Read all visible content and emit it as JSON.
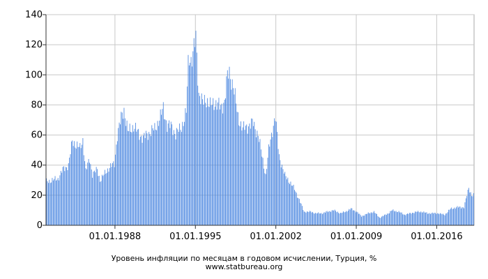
{
  "chart_data": {
    "type": "bar",
    "title": "Уровень инфляции по месяцам в годовом исчислении, Турция, %",
    "source": "www.statbureau.org",
    "xlabel": "",
    "ylabel": "",
    "x_start": "1982-01",
    "x_end": "2019-03",
    "ylim": [
      0,
      140
    ],
    "yticks": [
      0,
      20,
      40,
      60,
      80,
      100,
      120,
      140
    ],
    "yticklabels": [
      "0",
      "20",
      "40",
      "60",
      "80",
      "100",
      "120",
      "140"
    ],
    "xticks": [
      "1988-01",
      "1995-01",
      "2002-01",
      "2009-01",
      "2016-01"
    ],
    "xticklabels": [
      "01.01.1988",
      "01.01.1995",
      "01.01.2002",
      "01.01.2009",
      "01.01.2016"
    ],
    "grid": true,
    "bar_color": "#4a86e0",
    "anchors": [
      [
        "1982-01",
        29
      ],
      [
        "1982-07",
        30
      ],
      [
        "1983-01",
        31
      ],
      [
        "1983-06",
        37
      ],
      [
        "1983-12",
        40
      ],
      [
        "1984-04",
        56
      ],
      [
        "1984-12",
        51
      ],
      [
        "1985-03",
        57
      ],
      [
        "1985-06",
        36
      ],
      [
        "1985-10",
        44
      ],
      [
        "1986-01",
        34
      ],
      [
        "1986-06",
        37
      ],
      [
        "1986-09",
        30
      ],
      [
        "1987-06",
        38
      ],
      [
        "1987-12",
        41
      ],
      [
        "1988-03",
        60
      ],
      [
        "1988-08",
        74
      ],
      [
        "1988-10",
        77
      ],
      [
        "1989-02",
        62
      ],
      [
        "1989-08",
        66
      ],
      [
        "1990-01",
        61
      ],
      [
        "1990-06",
        58
      ],
      [
        "1991-01",
        62
      ],
      [
        "1991-06",
        64
      ],
      [
        "1991-12",
        72
      ],
      [
        "1992-03",
        78
      ],
      [
        "1992-07",
        66
      ],
      [
        "1992-12",
        66
      ],
      [
        "1993-04",
        60
      ],
      [
        "1993-10",
        66
      ],
      [
        "1994-01",
        70
      ],
      [
        "1994-03",
        75
      ],
      [
        "1994-05",
        108
      ],
      [
        "1994-06",
        113
      ],
      [
        "1994-08",
        110
      ],
      [
        "1994-10",
        113
      ],
      [
        "1995-01",
        125
      ],
      [
        "1995-04",
        88
      ],
      [
        "1995-08",
        81
      ],
      [
        "1995-12",
        84
      ],
      [
        "1996-04",
        79
      ],
      [
        "1996-09",
        82
      ],
      [
        "1997-03",
        78
      ],
      [
        "1997-07",
        83
      ],
      [
        "1997-10",
        99
      ],
      [
        "1997-12",
        101
      ],
      [
        "1998-04",
        93
      ],
      [
        "1998-09",
        72
      ],
      [
        "1999-02",
        64
      ],
      [
        "1999-07",
        66
      ],
      [
        "2000-01",
        68
      ],
      [
        "2000-06",
        60
      ],
      [
        "2001-02",
        33
      ],
      [
        "2001-05",
        50
      ],
      [
        "2001-10",
        67
      ],
      [
        "2001-12",
        72
      ],
      [
        "2002-04",
        46
      ],
      [
        "2002-10",
        33
      ],
      [
        "2003-03",
        29
      ],
      [
        "2003-08",
        24
      ],
      [
        "2004-01",
        17
      ],
      [
        "2004-06",
        9
      ],
      [
        "2005-01",
        9
      ],
      [
        "2005-06",
        8
      ],
      [
        "2006-01",
        8
      ],
      [
        "2006-06",
        9
      ],
      [
        "2007-01",
        10
      ],
      [
        "2007-08",
        8
      ],
      [
        "2008-01",
        9
      ],
      [
        "2008-07",
        11
      ],
      [
        "2009-01",
        9
      ],
      [
        "2009-06",
        6
      ],
      [
        "2010-01",
        8
      ],
      [
        "2010-07",
        9
      ],
      [
        "2011-01",
        5
      ],
      [
        "2011-10",
        8
      ],
      [
        "2012-02",
        10
      ],
      [
        "2012-09",
        9
      ],
      [
        "2013-03",
        7
      ],
      [
        "2013-09",
        8
      ],
      [
        "2014-04",
        9
      ],
      [
        "2014-09",
        9
      ],
      [
        "2015-03",
        8
      ],
      [
        "2015-09",
        8
      ],
      [
        "2016-02",
        8
      ],
      [
        "2016-09",
        7
      ],
      [
        "2017-03",
        11
      ],
      [
        "2017-10",
        12
      ],
      [
        "2018-05",
        12
      ],
      [
        "2018-10",
        25
      ],
      [
        "2019-01",
        20
      ],
      [
        "2019-03",
        20
      ]
    ]
  }
}
